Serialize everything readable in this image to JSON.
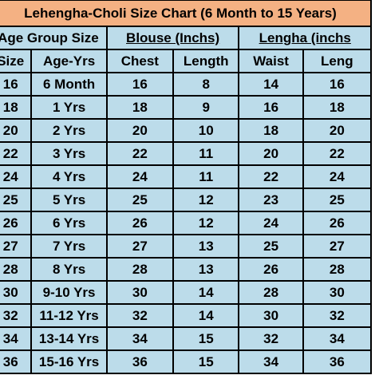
{
  "title": "Lehengha-Choli Size Chart  (6 Month to 15 Years)",
  "colors": {
    "title_background": "#f4b183",
    "cell_background": "#bcdcea",
    "border": "#000000",
    "text": "#000000"
  },
  "groups": [
    {
      "label": "Age Group Size",
      "underlined": false
    },
    {
      "label": "Blouse (Inchs)",
      "underlined": true
    },
    {
      "label": "Lengha (inchs",
      "underlined": true
    }
  ],
  "columns": [
    "Size",
    "Age-Yrs",
    "Chest",
    "Length",
    "Waist",
    "Leng"
  ],
  "rows": [
    [
      "16",
      "6 Month",
      "16",
      "8",
      "14",
      "16"
    ],
    [
      "18",
      "1 Yrs",
      "18",
      "9",
      "16",
      "18"
    ],
    [
      "20",
      "2 Yrs",
      "20",
      "10",
      "18",
      "20"
    ],
    [
      "22",
      "3 Yrs",
      "22",
      "11",
      "20",
      "22"
    ],
    [
      "24",
      "4 Yrs",
      "24",
      "11",
      "22",
      "24"
    ],
    [
      "25",
      "5 Yrs",
      "25",
      "12",
      "23",
      "25"
    ],
    [
      "26",
      "6 Yrs",
      "26",
      "12",
      "24",
      "26"
    ],
    [
      "27",
      "7 Yrs",
      "27",
      "13",
      "25",
      "27"
    ],
    [
      "28",
      "8 Yrs",
      "28",
      "13",
      "26",
      "28"
    ],
    [
      "30",
      "9-10 Yrs",
      "30",
      "14",
      "28",
      "30"
    ],
    [
      "32",
      "11-12 Yrs",
      "32",
      "14",
      "30",
      "32"
    ],
    [
      "34",
      "13-14 Yrs",
      "34",
      "15",
      "32",
      "34"
    ],
    [
      "36",
      "15-16 Yrs",
      "36",
      "15",
      "34",
      "36"
    ]
  ]
}
